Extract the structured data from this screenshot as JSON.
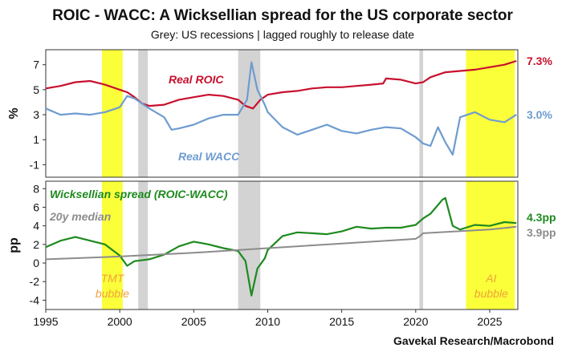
{
  "title": "ROIC - WACC: A Wicksellian spread for the US corporate sector",
  "subtitle": "Grey: US recessions | lagged roughly to release date",
  "source": "Gavekal Research/Macrobond",
  "colors": {
    "roic": "#c8102e",
    "wacc": "#6e9ccf",
    "spread": "#1e8a1e",
    "median": "#8c8c8c",
    "recession": "#d3d3d3",
    "highlight": "#fbff3a",
    "annotation": "#f0a23a"
  },
  "chart_data": [
    {
      "type": "line",
      "panel": "top",
      "ylabel": "%",
      "ylim": [
        -2,
        8.2
      ],
      "xlim": [
        1995,
        2026.9
      ],
      "yticks": [
        -1,
        1,
        3,
        5,
        7
      ],
      "series": [
        {
          "name": "Real ROIC",
          "end_label": "7.3%",
          "x": [
            1995,
            1996,
            1997,
            1998,
            1999,
            2000,
            2000.5,
            2001,
            2001.5,
            2002,
            2003,
            2004,
            2005,
            2006,
            2007,
            2008,
            2008.5,
            2009,
            2009.5,
            2010,
            2011,
            2012,
            2013,
            2014,
            2015,
            2016,
            2017,
            2017.8,
            2018,
            2019,
            2020,
            2020.5,
            2021,
            2022,
            2023,
            2024,
            2025,
            2026,
            2026.8
          ],
          "values": [
            5.1,
            5.3,
            5.6,
            5.7,
            5.4,
            5.0,
            4.8,
            4.4,
            3.9,
            3.7,
            3.8,
            4.2,
            4.4,
            4.6,
            4.5,
            4.2,
            3.7,
            3.5,
            4.2,
            4.6,
            4.8,
            4.9,
            5.1,
            5.2,
            5.2,
            5.3,
            5.4,
            5.5,
            5.9,
            5.8,
            5.5,
            5.6,
            6.0,
            6.4,
            6.5,
            6.6,
            6.8,
            7.0,
            7.3
          ]
        },
        {
          "name": "Real WACC",
          "end_label": "3.0%",
          "x": [
            1995,
            1996,
            1997,
            1998,
            1999,
            2000,
            2000.5,
            2001,
            2002,
            2003,
            2003.5,
            2004,
            2005,
            2006,
            2007,
            2008,
            2008.6,
            2008.9,
            2009.3,
            2009.8,
            2010,
            2011,
            2012,
            2013,
            2014,
            2015,
            2016,
            2017,
            2018,
            2019,
            2020,
            2020.5,
            2021,
            2021.5,
            2022,
            2022.5,
            2023,
            2024,
            2025,
            2026,
            2026.8
          ],
          "values": [
            3.5,
            3.0,
            3.1,
            3.0,
            3.2,
            3.6,
            4.5,
            4.3,
            3.5,
            2.8,
            1.8,
            1.9,
            2.2,
            2.7,
            3.0,
            3.0,
            4.2,
            7.2,
            5.0,
            3.8,
            3.2,
            2.0,
            1.4,
            1.8,
            2.2,
            1.7,
            1.5,
            1.8,
            2.0,
            1.9,
            1.2,
            0.7,
            0.5,
            2.0,
            0.8,
            -0.2,
            2.8,
            3.2,
            2.6,
            2.4,
            3.0
          ]
        }
      ],
      "annotations": [
        "Real ROIC",
        "Real WACC"
      ]
    },
    {
      "type": "line",
      "panel": "bottom",
      "ylabel": "pp",
      "ylim": [
        -5,
        8.8
      ],
      "xlim": [
        1995,
        2026.9
      ],
      "yticks": [
        -4,
        -2,
        0,
        2,
        4,
        6,
        8
      ],
      "xticks": [
        1995,
        2000,
        2005,
        2010,
        2015,
        2020,
        2025
      ],
      "series": [
        {
          "name": "Wicksellian spread (ROIC-WACC)",
          "end_label": "4.3pp",
          "x": [
            1995,
            1996,
            1997,
            1998,
            1999,
            2000,
            2000.5,
            2001,
            2002,
            2003,
            2004,
            2005,
            2006,
            2007,
            2008,
            2008.5,
            2008.9,
            2009.3,
            2009.8,
            2010,
            2011,
            2012,
            2013,
            2014,
            2015,
            2016,
            2017,
            2018,
            2019,
            2020,
            2020.5,
            2021,
            2021.8,
            2022,
            2022.5,
            2023,
            2024,
            2025,
            2026,
            2026.8
          ],
          "values": [
            1.7,
            2.4,
            2.8,
            2.4,
            2.0,
            0.8,
            -0.3,
            0.2,
            0.4,
            0.9,
            1.8,
            2.3,
            2.0,
            1.6,
            1.3,
            0.2,
            -3.5,
            -0.6,
            0.5,
            1.4,
            2.9,
            3.3,
            3.2,
            3.1,
            3.4,
            3.9,
            3.7,
            3.8,
            3.8,
            4.1,
            4.8,
            5.3,
            6.8,
            7.0,
            4.0,
            3.6,
            4.1,
            4.0,
            4.4,
            4.3
          ]
        },
        {
          "name": "20y median",
          "end_label": "3.9pp",
          "x": [
            1995,
            2000,
            2005,
            2010,
            2015,
            2020,
            2020.3,
            2020.5,
            2025,
            2026.8
          ],
          "values": [
            0.4,
            0.7,
            1.1,
            1.6,
            2.1,
            2.6,
            2.9,
            3.2,
            3.6,
            3.9
          ]
        }
      ],
      "annotations": [
        "TMT bubble",
        "AI bubble"
      ]
    }
  ],
  "shaded_periods": {
    "recessions": [
      [
        2001.25,
        2001.9
      ],
      [
        2008.0,
        2009.5
      ],
      [
        2020.25,
        2020.5
      ]
    ],
    "highlights": [
      {
        "label": "TMT bubble",
        "range": [
          1998.8,
          2000.2
        ]
      },
      {
        "label": "AI bubble",
        "range": [
          2023.4,
          2026.7
        ]
      }
    ]
  }
}
